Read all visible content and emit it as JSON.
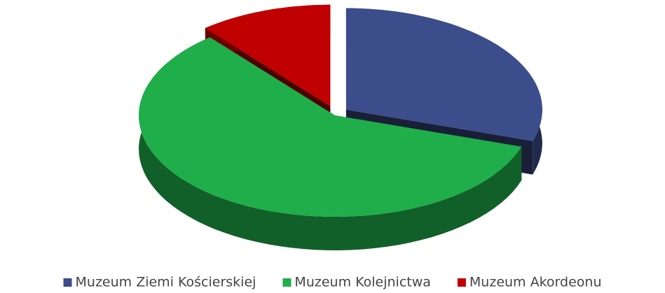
{
  "chart_data": {
    "type": "pie",
    "categories": [
      "Muzeum Ziemi Kościerskiej",
      "Muzeum Kolejnictwa",
      "Muzeum Akordeonu"
    ],
    "values": [
      30,
      59,
      11
    ],
    "colors": [
      "#3b4d8a",
      "#1fae4a",
      "#c00000"
    ],
    "legend": "bottom"
  }
}
